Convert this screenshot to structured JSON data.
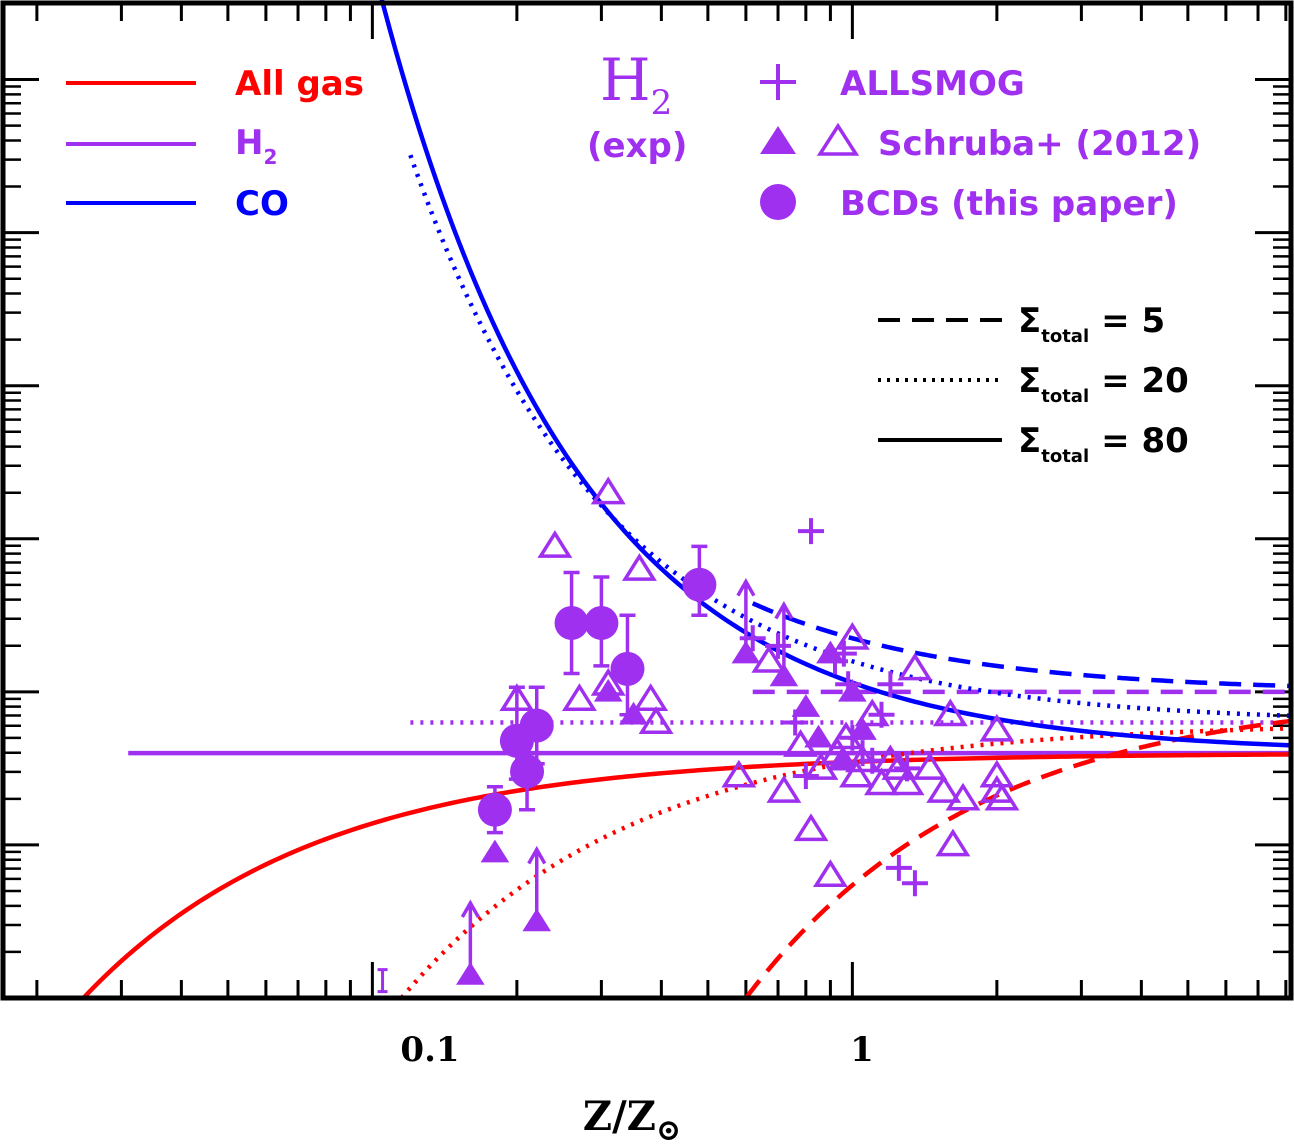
{
  "chart_data": {
    "type": "scatter",
    "title": "",
    "xlabel": "Z/Z",
    "xlabel_symbol": "⊙",
    "ylabel": "",
    "xscale": "log",
    "xlim": [
      0.017,
      8.2
    ],
    "ylim": [
      0,
      6.5
    ],
    "y_ticks_labeled": false,
    "x_tick_labels": [
      "0.1",
      "1"
    ],
    "colors": {
      "all_gas": "#ff0000",
      "h2": "#a030f0",
      "co": "#0000ff",
      "axes": "#000000"
    },
    "panel_label": {
      "main": "H",
      "sub": "2",
      "note": "(exp)"
    },
    "legend_models": [
      {
        "label": "All gas",
        "color": "#ff0000"
      },
      {
        "label": "H",
        "sub": "2",
        "color": "#a030f0"
      },
      {
        "label": "CO",
        "color": "#0000ff"
      }
    ],
    "legend_data": [
      {
        "marker": "plus",
        "label": "ALLSMOG"
      },
      {
        "marker": "triangles",
        "label": "Schruba+ (2012)"
      },
      {
        "marker": "circle",
        "label": "BCDs (this paper)"
      }
    ],
    "legend_styles": [
      {
        "dash": "dashed",
        "prefix": "Σ",
        "sub": "total",
        "value": "= 5"
      },
      {
        "dash": "dotted",
        "prefix": "Σ",
        "sub": "total",
        "value": "= 20"
      },
      {
        "dash": "solid",
        "prefix": "Σ",
        "sub": "total",
        "value": "= 80"
      }
    ],
    "series": [
      {
        "kind": "h2_model",
        "style": "solid",
        "x_range": [
          0.031,
          8.2
        ],
        "y": 1.6
      },
      {
        "kind": "h2_model",
        "style": "dotted",
        "x_range": [
          0.12,
          8.2
        ],
        "y": 1.8
      },
      {
        "kind": "h2_model",
        "style": "dashed",
        "x_range": [
          0.62,
          8.2
        ],
        "y": 2.0
      },
      {
        "kind": "all_gas_model",
        "style": "solid",
        "y_inf": 1.6,
        "x0": 0.025
      },
      {
        "kind": "all_gas_model",
        "style": "dotted",
        "y_inf": 1.8,
        "x0": 0.115
      },
      {
        "kind": "all_gas_model",
        "style": "dashed",
        "y_inf": 2.0,
        "x0": 0.6
      },
      {
        "kind": "co_model",
        "style": "solid",
        "y_inf": 1.6,
        "x_range": [
          0.02,
          8.2
        ]
      },
      {
        "kind": "co_model",
        "style": "dotted",
        "y_inf": 1.8,
        "x_range": [
          0.12,
          8.2
        ]
      },
      {
        "kind": "co_model",
        "style": "dashed",
        "y_inf": 2.0,
        "x_range": [
          0.62,
          8.2
        ]
      }
    ],
    "bcds": [
      {
        "x": 0.18,
        "y": 1.23,
        "err_up": 0.15,
        "err_down": 0.15
      },
      {
        "x": 0.2,
        "y": 1.68,
        "err_up": 0.35,
        "err_down": 0.25
      },
      {
        "x": 0.21,
        "y": 1.48,
        "err_up": 0.3,
        "err_down": 0.25
      },
      {
        "x": 0.22,
        "y": 1.78,
        "err_up": 0.25,
        "err_down": 0.25
      },
      {
        "x": 0.26,
        "y": 2.45,
        "err_up": 0.33,
        "err_down": 0.33
      },
      {
        "x": 0.3,
        "y": 2.45,
        "err_up": 0.3,
        "err_down": 0.28
      },
      {
        "x": 0.34,
        "y": 2.15,
        "err_up": 0.35,
        "err_down": 0.3
      },
      {
        "x": 0.48,
        "y": 2.7,
        "err_up": 0.25,
        "err_down": 0.2
      }
    ],
    "schruba_filled": [
      {
        "x": 0.16,
        "y": 0.15,
        "arrow": true
      },
      {
        "x": 0.18,
        "y": 0.95,
        "arrow": false
      },
      {
        "x": 0.22,
        "y": 0.5,
        "arrow": true
      },
      {
        "x": 0.31,
        "y": 2.0,
        "arrow": false
      },
      {
        "x": 0.35,
        "y": 1.85,
        "arrow": false
      },
      {
        "x": 0.6,
        "y": 2.25,
        "arrow": true
      },
      {
        "x": 0.72,
        "y": 2.1,
        "arrow": true
      },
      {
        "x": 0.8,
        "y": 1.9,
        "arrow": false
      },
      {
        "x": 0.85,
        "y": 1.7,
        "arrow": false
      },
      {
        "x": 0.9,
        "y": 2.25,
        "arrow": false
      },
      {
        "x": 0.95,
        "y": 1.55,
        "arrow": false
      },
      {
        "x": 1.0,
        "y": 2.0,
        "arrow": false
      },
      {
        "x": 1.05,
        "y": 1.75,
        "arrow": false
      }
    ],
    "schruba_open": [
      {
        "x": 0.2,
        "y": 1.95
      },
      {
        "x": 0.24,
        "y": 2.95
      },
      {
        "x": 0.27,
        "y": 1.95
      },
      {
        "x": 0.31,
        "y": 3.3
      },
      {
        "x": 0.31,
        "y": 2.05
      },
      {
        "x": 0.36,
        "y": 2.8
      },
      {
        "x": 0.38,
        "y": 1.95
      },
      {
        "x": 0.39,
        "y": 1.8
      },
      {
        "x": 0.58,
        "y": 1.45
      },
      {
        "x": 0.67,
        "y": 2.2
      },
      {
        "x": 0.72,
        "y": 1.35
      },
      {
        "x": 0.78,
        "y": 1.65
      },
      {
        "x": 0.82,
        "y": 1.1
      },
      {
        "x": 0.86,
        "y": 1.5
      },
      {
        "x": 0.9,
        "y": 0.8
      },
      {
        "x": 0.93,
        "y": 1.6
      },
      {
        "x": 0.97,
        "y": 1.7
      },
      {
        "x": 1.0,
        "y": 2.35
      },
      {
        "x": 1.02,
        "y": 1.45
      },
      {
        "x": 1.05,
        "y": 1.55
      },
      {
        "x": 1.1,
        "y": 1.85
      },
      {
        "x": 1.15,
        "y": 1.4
      },
      {
        "x": 1.2,
        "y": 1.55
      },
      {
        "x": 1.25,
        "y": 1.5
      },
      {
        "x": 1.3,
        "y": 1.4
      },
      {
        "x": 1.35,
        "y": 2.15
      },
      {
        "x": 1.45,
        "y": 1.5
      },
      {
        "x": 1.55,
        "y": 1.35
      },
      {
        "x": 1.6,
        "y": 1.85
      },
      {
        "x": 1.7,
        "y": 1.3
      },
      {
        "x": 1.62,
        "y": 1.0
      },
      {
        "x": 2.0,
        "y": 1.75
      },
      {
        "x": 2.0,
        "y": 1.45
      },
      {
        "x": 2.0,
        "y": 1.35
      },
      {
        "x": 2.05,
        "y": 1.3
      }
    ],
    "allsmog": [
      {
        "x": 0.62,
        "y": 2.35
      },
      {
        "x": 0.7,
        "y": 2.3
      },
      {
        "x": 0.76,
        "y": 1.8
      },
      {
        "x": 0.8,
        "y": 1.45
      },
      {
        "x": 0.82,
        "y": 3.05
      },
      {
        "x": 0.92,
        "y": 2.2
      },
      {
        "x": 0.96,
        "y": 2.25
      },
      {
        "x": 0.98,
        "y": 2.05
      },
      {
        "x": 1.0,
        "y": 1.7
      },
      {
        "x": 1.05,
        "y": 1.6
      },
      {
        "x": 1.1,
        "y": 1.55
      },
      {
        "x": 1.15,
        "y": 1.85
      },
      {
        "x": 1.2,
        "y": 2.05
      },
      {
        "x": 1.25,
        "y": 0.85
      },
      {
        "x": 1.35,
        "y": 0.75
      },
      {
        "x": 1.3,
        "y": 1.5
      }
    ],
    "upper_limits_small": [
      {
        "x": 0.105,
        "y": 0.12
      }
    ]
  }
}
